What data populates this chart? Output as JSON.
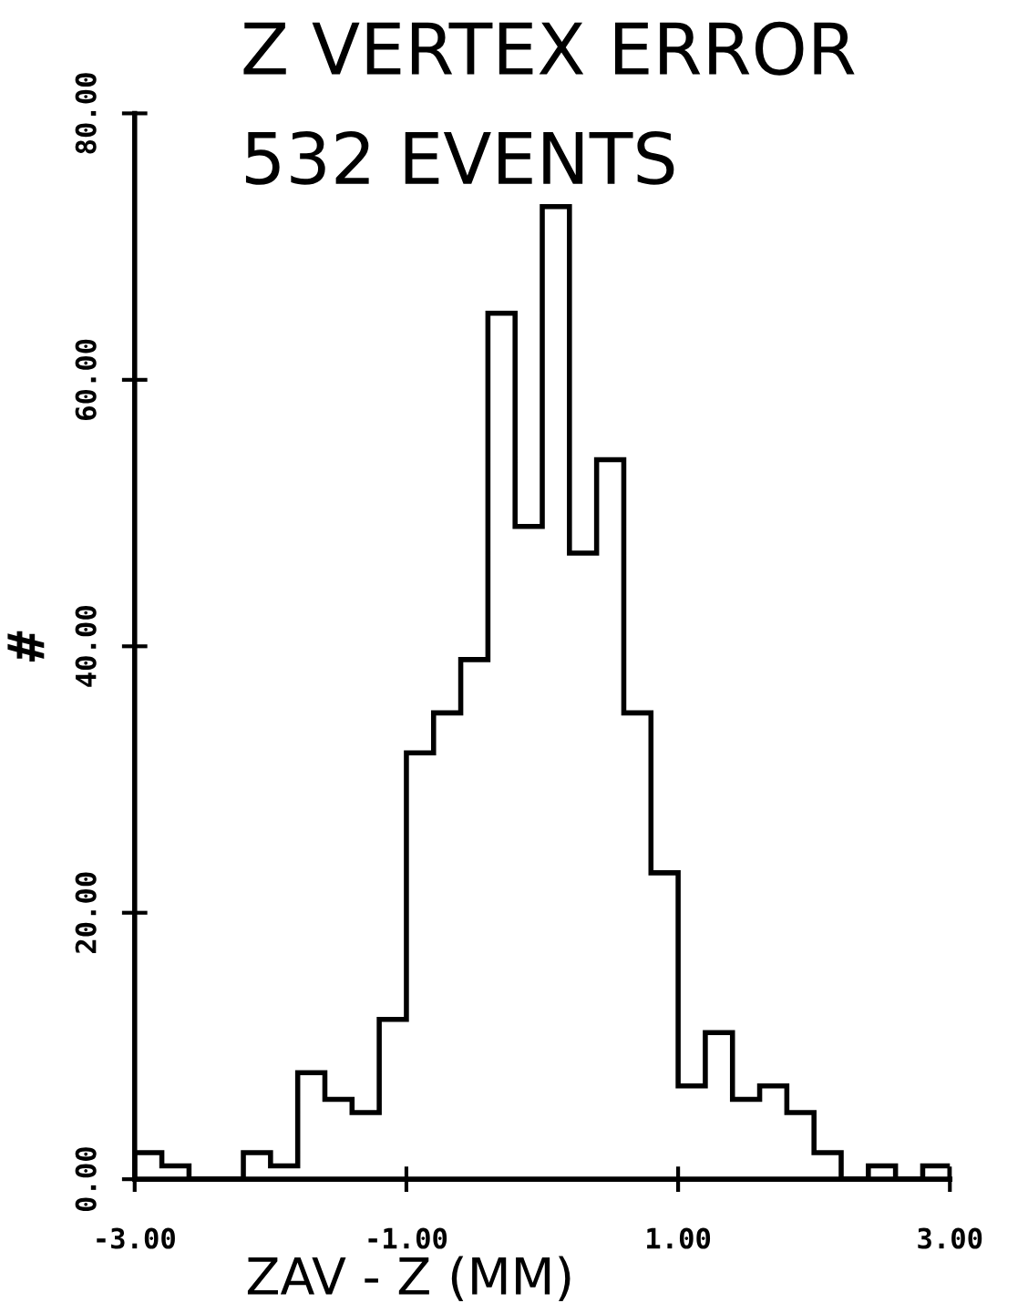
{
  "chart_data": {
    "type": "histogram",
    "title": "Z VERTEX ERROR",
    "subtitle": "532 EVENTS",
    "xlabel": "ZAV - Z (MM)",
    "ylabel": "#",
    "bins": [
      -3.0,
      -2.8,
      -2.6,
      -2.4,
      -2.2,
      -2.0,
      -1.8,
      -1.6,
      -1.4,
      -1.2,
      -1.0,
      -0.8,
      -0.6,
      -0.4,
      -0.2,
      0.0,
      0.2,
      0.4,
      0.6,
      0.8,
      1.0,
      1.2,
      1.4,
      1.6,
      1.8,
      2.0,
      2.2,
      2.4,
      2.6,
      2.8,
      3.0
    ],
    "values": [
      2,
      1,
      0,
      0,
      2,
      1,
      8,
      6,
      5,
      12,
      32,
      35,
      39,
      65,
      49,
      73,
      47,
      54,
      35,
      23,
      7,
      11,
      6,
      7,
      5,
      2,
      0,
      1,
      0,
      1
    ],
    "color": "#000000",
    "xlim": [
      -3,
      3
    ],
    "ylim": [
      0,
      80
    ],
    "xticks": [
      {
        "value": -3,
        "label": "-3.00"
      },
      {
        "value": -1,
        "label": "-1.00"
      },
      {
        "value": 1,
        "label": "1.00"
      },
      {
        "value": 3,
        "label": "3.00"
      }
    ],
    "yticks": [
      {
        "value": 0,
        "label": "0.00"
      },
      {
        "value": 20,
        "label": "20.00"
      },
      {
        "value": 40,
        "label": "40.00"
      },
      {
        "value": 60,
        "label": "60.00"
      },
      {
        "value": 80,
        "label": "80.00"
      }
    ],
    "grid": false,
    "legend": false
  }
}
